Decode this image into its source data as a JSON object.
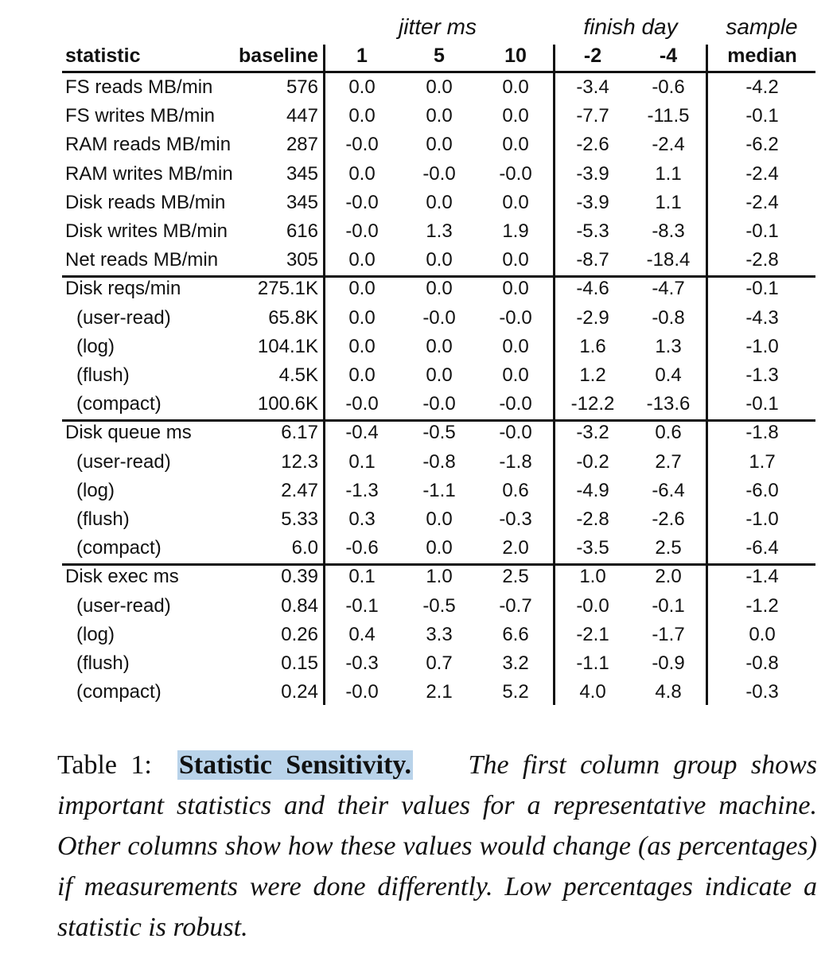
{
  "table": {
    "group_headers": {
      "jitter": "jitter ms",
      "finish": "finish day",
      "sample": "sample"
    },
    "col_headers": {
      "statistic": "statistic",
      "baseline": "baseline",
      "j1": "1",
      "j5": "5",
      "j10": "10",
      "f2": "-2",
      "f4": "-4",
      "median": "median"
    },
    "rows": [
      {
        "label": "FS reads MB/min",
        "indent": false,
        "baseline": "576",
        "j1": "0.0",
        "j5": "0.0",
        "j10": "0.0",
        "f2": "-3.4",
        "f4": "-0.6",
        "median": "-4.2"
      },
      {
        "label": "FS writes MB/min",
        "indent": false,
        "baseline": "447",
        "j1": "0.0",
        "j5": "0.0",
        "j10": "0.0",
        "f2": "-7.7",
        "f4": "-11.5",
        "median": "-0.1"
      },
      {
        "label": "RAM reads MB/min",
        "indent": false,
        "baseline": "287",
        "j1": "-0.0",
        "j5": "0.0",
        "j10": "0.0",
        "f2": "-2.6",
        "f4": "-2.4",
        "median": "-6.2"
      },
      {
        "label": "RAM writes MB/min",
        "indent": false,
        "baseline": "345",
        "j1": "0.0",
        "j5": "-0.0",
        "j10": "-0.0",
        "f2": "-3.9",
        "f4": "1.1",
        "median": "-2.4"
      },
      {
        "label": "Disk reads MB/min",
        "indent": false,
        "baseline": "345",
        "j1": "-0.0",
        "j5": "0.0",
        "j10": "0.0",
        "f2": "-3.9",
        "f4": "1.1",
        "median": "-2.4"
      },
      {
        "label": "Disk writes MB/min",
        "indent": false,
        "baseline": "616",
        "j1": "-0.0",
        "j5": "1.3",
        "j10": "1.9",
        "f2": "-5.3",
        "f4": "-8.3",
        "median": "-0.1"
      },
      {
        "label": "Net reads MB/min",
        "indent": false,
        "baseline": "305",
        "j1": "0.0",
        "j5": "0.0",
        "j10": "0.0",
        "f2": "-8.7",
        "f4": "-18.4",
        "median": "-2.8"
      },
      {
        "label": "Disk reqs/min",
        "indent": false,
        "baseline": "275.1K",
        "j1": "0.0",
        "j5": "0.0",
        "j10": "0.0",
        "f2": "-4.6",
        "f4": "-4.7",
        "median": "-0.1"
      },
      {
        "label": "(user-read)",
        "indent": true,
        "baseline": "65.8K",
        "j1": "0.0",
        "j5": "-0.0",
        "j10": "-0.0",
        "f2": "-2.9",
        "f4": "-0.8",
        "median": "-4.3"
      },
      {
        "label": "(log)",
        "indent": true,
        "baseline": "104.1K",
        "j1": "0.0",
        "j5": "0.0",
        "j10": "0.0",
        "f2": "1.6",
        "f4": "1.3",
        "median": "-1.0"
      },
      {
        "label": "(flush)",
        "indent": true,
        "baseline": "4.5K",
        "j1": "0.0",
        "j5": "0.0",
        "j10": "0.0",
        "f2": "1.2",
        "f4": "0.4",
        "median": "-1.3"
      },
      {
        "label": "(compact)",
        "indent": true,
        "baseline": "100.6K",
        "j1": "-0.0",
        "j5": "-0.0",
        "j10": "-0.0",
        "f2": "-12.2",
        "f4": "-13.6",
        "median": "-0.1"
      },
      {
        "label": "Disk queue ms",
        "indent": false,
        "baseline": "6.17",
        "j1": "-0.4",
        "j5": "-0.5",
        "j10": "-0.0",
        "f2": "-3.2",
        "f4": "0.6",
        "median": "-1.8"
      },
      {
        "label": "(user-read)",
        "indent": true,
        "baseline": "12.3",
        "j1": "0.1",
        "j5": "-0.8",
        "j10": "-1.8",
        "f2": "-0.2",
        "f4": "2.7",
        "median": "1.7"
      },
      {
        "label": "(log)",
        "indent": true,
        "baseline": "2.47",
        "j1": "-1.3",
        "j5": "-1.1",
        "j10": "0.6",
        "f2": "-4.9",
        "f4": "-6.4",
        "median": "-6.0"
      },
      {
        "label": "(flush)",
        "indent": true,
        "baseline": "5.33",
        "j1": "0.3",
        "j5": "0.0",
        "j10": "-0.3",
        "f2": "-2.8",
        "f4": "-2.6",
        "median": "-1.0"
      },
      {
        "label": "(compact)",
        "indent": true,
        "baseline": "6.0",
        "j1": "-0.6",
        "j5": "0.0",
        "j10": "2.0",
        "f2": "-3.5",
        "f4": "2.5",
        "median": "-6.4"
      },
      {
        "label": "Disk exec ms",
        "indent": false,
        "baseline": "0.39",
        "j1": "0.1",
        "j5": "1.0",
        "j10": "2.5",
        "f2": "1.0",
        "f4": "2.0",
        "median": "-1.4"
      },
      {
        "label": "(user-read)",
        "indent": true,
        "baseline": "0.84",
        "j1": "-0.1",
        "j5": "-0.5",
        "j10": "-0.7",
        "f2": "-0.0",
        "f4": "-0.1",
        "median": "-1.2"
      },
      {
        "label": "(log)",
        "indent": true,
        "baseline": "0.26",
        "j1": "0.4",
        "j5": "3.3",
        "j10": "6.6",
        "f2": "-2.1",
        "f4": "-1.7",
        "median": "0.0"
      },
      {
        "label": "(flush)",
        "indent": true,
        "baseline": "0.15",
        "j1": "-0.3",
        "j5": "0.7",
        "j10": "3.2",
        "f2": "-1.1",
        "f4": "-0.9",
        "median": "-0.8"
      },
      {
        "label": "(compact)",
        "indent": true,
        "baseline": "0.24",
        "j1": "-0.0",
        "j5": "2.1",
        "j10": "5.2",
        "f2": "4.0",
        "f4": "4.8",
        "median": "-0.3"
      }
    ]
  },
  "caption": {
    "label": "Table 1:",
    "title": "Statistic Sensitivity.",
    "text": "The first column group shows important statistics and their values for a representative machine. Other columns show how these values would change (as percentages) if measurements were done differently. Low percentages indicate a statistic is robust."
  },
  "colors": {
    "highlight": "#b9d3ea",
    "text": "#111111"
  }
}
